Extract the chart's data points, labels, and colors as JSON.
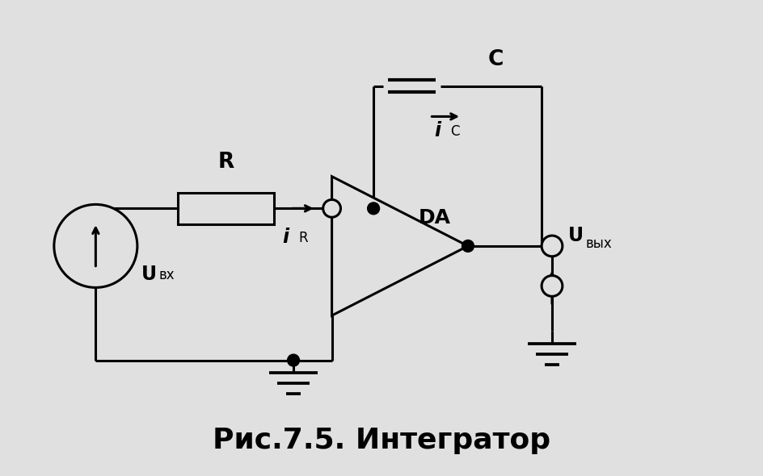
{
  "title": "Рис.7.5. Интегратор",
  "title_fontsize": 26,
  "bg_color": "#e0e0e0",
  "line_color": "#000000",
  "line_width": 2.2,
  "fig_width": 9.44,
  "fig_height": 5.9,
  "label_R": "R",
  "label_C": "C",
  "label_DA": "DA",
  "label_Uvx": "U",
  "label_Uvx_sub": "вх",
  "label_Uvyx": "U",
  "label_Uvyx_sub": "вых",
  "label_iR": "i",
  "label_iR_sub": "R",
  "label_iC": "i",
  "label_iC_sub": "C"
}
